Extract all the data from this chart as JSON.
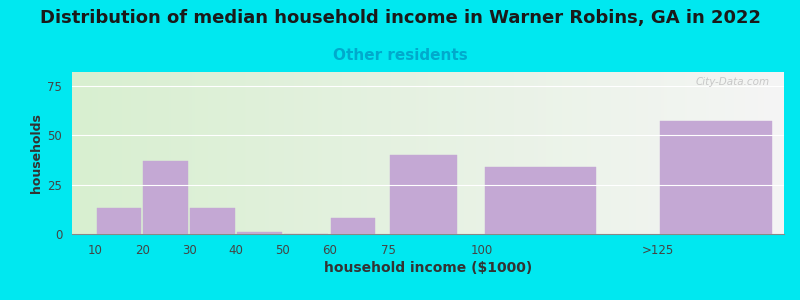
{
  "title": "Distribution of median household income in Warner Robins, GA in 2022",
  "subtitle": "Other residents",
  "xlabel": "household income ($1000)",
  "ylabel": "households",
  "bar_labels": [
    "10",
    "20",
    "30",
    "40",
    "50",
    "60",
    "75",
    "100",
    ">125"
  ],
  "bar_centers": [
    10,
    20,
    30,
    40,
    50,
    60,
    75,
    100,
    137.5
  ],
  "bar_widths": [
    10,
    10,
    10,
    10,
    10,
    10,
    15,
    25,
    25
  ],
  "bar_values": [
    13,
    37,
    13,
    1,
    0,
    8,
    40,
    34,
    57
  ],
  "bar_color": "#c4a8d4",
  "bar_edgecolor": "#c4a8d4",
  "background_outer": "#00e8f0",
  "background_plot_left": "#d8efd0",
  "background_plot_right": "#f5f5f5",
  "ylim": [
    0,
    82
  ],
  "yticks": [
    0,
    25,
    50,
    75
  ],
  "xlim": [
    0,
    152
  ],
  "xtick_labels": [
    "10",
    "20",
    "30",
    "40",
    "50",
    "60",
    "75",
    "100",
    ">125"
  ],
  "title_fontsize": 13,
  "subtitle_fontsize": 11,
  "subtitle_color": "#00aacc",
  "watermark": "City-Data.com"
}
